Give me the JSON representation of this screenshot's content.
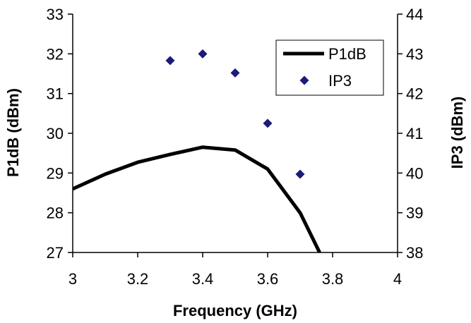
{
  "chart_data": {
    "type": "line",
    "xlabel": "Frequency (GHz)",
    "ylabel": "P1dB (dBm)",
    "y2label": "IP3 (dBm)",
    "xlim": [
      3,
      4
    ],
    "ylim": [
      27,
      33
    ],
    "y2lim": [
      38,
      44
    ],
    "x_ticks": [
      "3",
      "3.2",
      "3.4",
      "3.6",
      "3.8",
      "4"
    ],
    "y_ticks": [
      "27",
      "28",
      "29",
      "30",
      "31",
      "32",
      "33"
    ],
    "y2_ticks": [
      "38",
      "39",
      "40",
      "41",
      "42",
      "43",
      "44"
    ],
    "grid": false,
    "legend_position": "top-right",
    "series": [
      {
        "name": "P1dB",
        "axis": "left",
        "style": "line",
        "color": "#000000",
        "x": [
          3.0,
          3.1,
          3.2,
          3.3,
          3.4,
          3.5,
          3.6,
          3.7,
          3.76
        ],
        "y": [
          28.6,
          28.97,
          29.27,
          29.47,
          29.65,
          29.58,
          29.1,
          28.0,
          27.0
        ]
      },
      {
        "name": "IP3",
        "axis": "right",
        "style": "marker",
        "marker": "diamond",
        "color": "#1b1b7a",
        "x": [
          3.3,
          3.4,
          3.5,
          3.6,
          3.7
        ],
        "y": [
          42.83,
          43.0,
          42.52,
          41.25,
          39.97
        ]
      }
    ]
  }
}
